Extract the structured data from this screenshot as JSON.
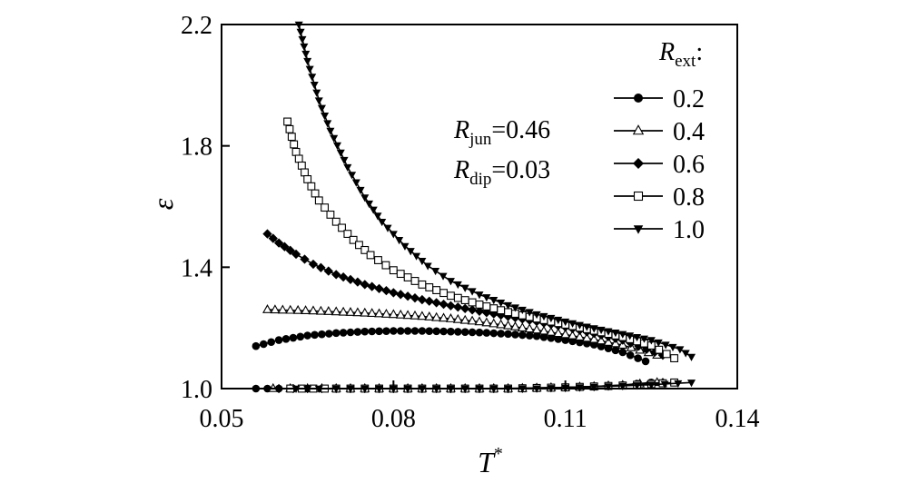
{
  "chart_data": {
    "type": "line",
    "xlabel": "T",
    "xlabel_superscript": "*",
    "ylabel": "ε",
    "xlim": [
      0.05,
      0.14
    ],
    "ylim": [
      1.0,
      2.2
    ],
    "x_ticks": [
      0.05,
      0.08,
      0.11,
      0.14
    ],
    "x_tick_labels": [
      "0.05",
      "0.08",
      "0.11",
      "0.14"
    ],
    "y_ticks": [
      1.0,
      1.4,
      1.8,
      2.2
    ],
    "y_tick_labels": [
      "1.0",
      "1.4",
      "1.8",
      "2.2"
    ],
    "grid": false,
    "legend": {
      "position": "top-right",
      "title_symbol": "R",
      "title_subscript": "ext",
      "title_suffix": ":"
    },
    "annotations": [
      {
        "symbol": "R",
        "subscript": "jun",
        "text": "=0.46"
      },
      {
        "symbol": "R",
        "subscript": "dip",
        "text": "=0.03"
      }
    ],
    "series": [
      {
        "name": "0.2",
        "marker": "circle",
        "upper": {
          "x": [
            0.056,
            0.06,
            0.065,
            0.07,
            0.075,
            0.08,
            0.085,
            0.09,
            0.095,
            0.1,
            0.105,
            0.11,
            0.115,
            0.12,
            0.124
          ],
          "y": [
            1.14,
            1.16,
            1.175,
            1.183,
            1.188,
            1.19,
            1.19,
            1.188,
            1.185,
            1.18,
            1.173,
            1.16,
            1.145,
            1.12,
            1.09
          ]
        },
        "lower": {
          "x": [
            0.056,
            0.06,
            0.065,
            0.07,
            0.075,
            0.08,
            0.085,
            0.09,
            0.095,
            0.1,
            0.105,
            0.11,
            0.115,
            0.12,
            0.125
          ],
          "y": [
            1.0,
            1.0,
            1.0,
            1.0,
            1.0,
            1.0,
            1.0,
            1.0,
            1.0,
            1.001,
            1.002,
            1.004,
            1.007,
            1.012,
            1.02
          ]
        }
      },
      {
        "name": "0.4",
        "marker": "triangle-up",
        "upper": {
          "x": [
            0.058,
            0.062,
            0.066,
            0.07,
            0.075,
            0.08,
            0.085,
            0.09,
            0.095,
            0.1,
            0.105,
            0.11,
            0.115,
            0.12,
            0.126
          ],
          "y": [
            1.26,
            1.258,
            1.256,
            1.253,
            1.249,
            1.244,
            1.238,
            1.23,
            1.22,
            1.207,
            1.193,
            1.178,
            1.162,
            1.143,
            1.11
          ]
        },
        "lower": {
          "x": [
            0.059,
            0.065,
            0.07,
            0.075,
            0.08,
            0.085,
            0.09,
            0.095,
            0.1,
            0.105,
            0.11,
            0.115,
            0.12,
            0.126
          ],
          "y": [
            1.0,
            1.0,
            1.0,
            1.0,
            1.0,
            1.0,
            1.0,
            1.0,
            1.0,
            1.002,
            1.004,
            1.007,
            1.011,
            1.02
          ]
        }
      },
      {
        "name": "0.6",
        "marker": "diamond",
        "upper": {
          "x": [
            0.058,
            0.06,
            0.063,
            0.066,
            0.07,
            0.075,
            0.08,
            0.085,
            0.09,
            0.095,
            0.1,
            0.105,
            0.11,
            0.115,
            0.12,
            0.127
          ],
          "y": [
            1.51,
            1.48,
            1.443,
            1.41,
            1.376,
            1.343,
            1.316,
            1.293,
            1.273,
            1.255,
            1.238,
            1.221,
            1.203,
            1.182,
            1.16,
            1.11
          ]
        },
        "lower": {
          "x": [
            0.06,
            0.065,
            0.07,
            0.075,
            0.08,
            0.085,
            0.09,
            0.095,
            0.1,
            0.105,
            0.11,
            0.115,
            0.12,
            0.127
          ],
          "y": [
            1.0,
            1.0,
            1.0,
            1.0,
            1.0,
            1.0,
            1.0,
            1.0,
            1.0,
            1.002,
            1.004,
            1.007,
            1.011,
            1.02
          ]
        }
      },
      {
        "name": "0.8",
        "marker": "square-open",
        "upper": {
          "x": [
            0.0615,
            0.063,
            0.065,
            0.067,
            0.07,
            0.073,
            0.076,
            0.08,
            0.085,
            0.09,
            0.095,
            0.1,
            0.105,
            0.11,
            0.115,
            0.12,
            0.125,
            0.129
          ],
          "y": [
            1.88,
            1.78,
            1.69,
            1.62,
            1.55,
            1.49,
            1.44,
            1.39,
            1.343,
            1.306,
            1.277,
            1.252,
            1.231,
            1.211,
            1.191,
            1.17,
            1.142,
            1.1
          ]
        },
        "lower": {
          "x": [
            0.062,
            0.066,
            0.07,
            0.075,
            0.08,
            0.085,
            0.09,
            0.095,
            0.1,
            0.105,
            0.11,
            0.115,
            0.12,
            0.125,
            0.129
          ],
          "y": [
            1.0,
            1.0,
            1.0,
            1.0,
            1.0,
            1.0,
            1.0,
            1.0,
            1.0,
            1.002,
            1.004,
            1.007,
            1.01,
            1.015,
            1.02
          ]
        }
      },
      {
        "name": "1.0",
        "marker": "triangle-down",
        "upper": {
          "x": [
            0.0635,
            0.065,
            0.067,
            0.069,
            0.072,
            0.075,
            0.078,
            0.082,
            0.086,
            0.09,
            0.095,
            0.1,
            0.105,
            0.11,
            0.115,
            0.12,
            0.125,
            0.13,
            0.132
          ],
          "y": [
            2.2,
            2.08,
            1.95,
            1.85,
            1.73,
            1.63,
            1.55,
            1.47,
            1.405,
            1.355,
            1.31,
            1.275,
            1.245,
            1.221,
            1.199,
            1.18,
            1.16,
            1.13,
            1.105
          ]
        },
        "lower": {
          "x": [
            0.063,
            0.067,
            0.07,
            0.075,
            0.08,
            0.085,
            0.09,
            0.095,
            0.1,
            0.105,
            0.11,
            0.115,
            0.12,
            0.125,
            0.132
          ],
          "y": [
            1.0,
            1.0,
            1.0,
            1.0,
            1.0,
            1.0,
            1.0,
            1.0,
            1.0,
            1.001,
            1.003,
            1.006,
            1.009,
            1.013,
            1.02
          ]
        }
      }
    ]
  }
}
